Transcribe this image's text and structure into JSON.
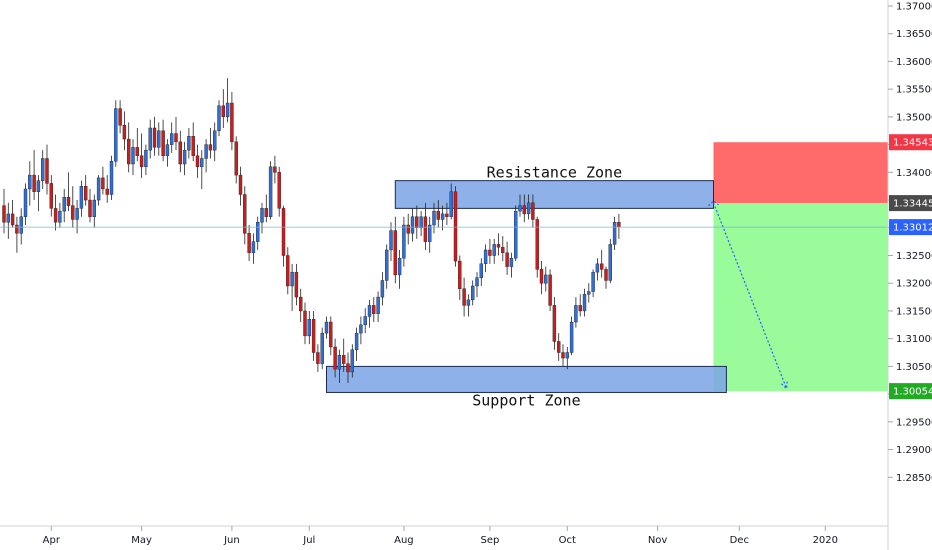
{
  "chart_data": {
    "type": "candlestick",
    "y_range": [
      1.28,
      1.37
    ],
    "y_ticks": [
      "1.37000",
      "1.36500",
      "1.36000",
      "1.35500",
      "1.35000",
      "1.34500",
      "1.34000",
      "1.33500",
      "1.33000",
      "1.32500",
      "1.32000",
      "1.31500",
      "1.31000",
      "1.30500",
      "1.30000",
      "1.29500",
      "1.29000",
      "1.28500"
    ],
    "x_labels": [
      {
        "label": "Apr",
        "index": 11
      },
      {
        "label": "May",
        "index": 32
      },
      {
        "label": "Jun",
        "index": 53
      },
      {
        "label": "Jul",
        "index": 71
      },
      {
        "label": "Aug",
        "index": 93
      },
      {
        "label": "Sep",
        "index": 113
      },
      {
        "label": "Oct",
        "index": 131
      },
      {
        "label": "Nov",
        "index": 152
      },
      {
        "label": "Dec",
        "index": 171
      },
      {
        "label": "2020",
        "index": 191
      }
    ],
    "price_tags": [
      {
        "value": 1.34543,
        "text": "1.34543",
        "color": "#f23645"
      },
      {
        "value": 1.33445,
        "text": "1.33445",
        "color": "#4a4a4a"
      },
      {
        "value": 1.33012,
        "text": "1.33012",
        "color": "#2962ff"
      },
      {
        "value": 1.30054,
        "text": "1.30054",
        "color": "#22ab22"
      }
    ],
    "zones": [
      {
        "name": "Resistance Zone",
        "top": 1.3385,
        "bottom": 1.3335,
        "start_index": 91,
        "end_index": 165
      },
      {
        "name": "Support Zone",
        "top": 1.305,
        "bottom": 1.3003,
        "start_index": 75,
        "end_index": 168
      }
    ],
    "position": {
      "entry": 1.33445,
      "stop": 1.34543,
      "target": 1.30054,
      "start_index": 165,
      "end_index": 196,
      "loss_color": "#ff6b6b",
      "profit_color": "#99fb99"
    },
    "projection": {
      "from_index": 165,
      "from_value": 1.3345,
      "to_index": 182,
      "to_value": 1.301
    },
    "current_price": 1.33012,
    "colors": {
      "up": "#2f6fd6",
      "down": "#c81e1e",
      "zone_fill": "#7aa3e6",
      "zone_border": "#1a2a55",
      "projection": "#2962ff",
      "current_line": "#7fb3d5"
    },
    "ohlc": [
      [
        1.334,
        1.337,
        1.329,
        1.331
      ],
      [
        1.331,
        1.3345,
        1.328,
        1.3325
      ],
      [
        1.3325,
        1.335,
        1.33,
        1.3305
      ],
      [
        1.3305,
        1.332,
        1.3255,
        1.329
      ],
      [
        1.329,
        1.3335,
        1.327,
        1.332
      ],
      [
        1.332,
        1.338,
        1.3305,
        1.337
      ],
      [
        1.337,
        1.342,
        1.334,
        1.3395
      ],
      [
        1.3395,
        1.344,
        1.335,
        1.3365
      ],
      [
        1.3365,
        1.3395,
        1.333,
        1.3385
      ],
      [
        1.3385,
        1.344,
        1.337,
        1.3425
      ],
      [
        1.3425,
        1.345,
        1.336,
        1.338
      ],
      [
        1.338,
        1.3395,
        1.332,
        1.3335
      ],
      [
        1.3335,
        1.336,
        1.3295,
        1.331
      ],
      [
        1.331,
        1.3345,
        1.33,
        1.333
      ],
      [
        1.333,
        1.337,
        1.331,
        1.3355
      ],
      [
        1.3355,
        1.34,
        1.333,
        1.334
      ],
      [
        1.334,
        1.3375,
        1.33,
        1.3315
      ],
      [
        1.3315,
        1.335,
        1.329,
        1.3335
      ],
      [
        1.3335,
        1.3385,
        1.332,
        1.3375
      ],
      [
        1.3375,
        1.3395,
        1.334,
        1.335
      ],
      [
        1.335,
        1.337,
        1.331,
        1.332
      ],
      [
        1.332,
        1.336,
        1.33,
        1.335
      ],
      [
        1.335,
        1.3395,
        1.334,
        1.339
      ],
      [
        1.339,
        1.341,
        1.336,
        1.337
      ],
      [
        1.337,
        1.3395,
        1.3345,
        1.336
      ],
      [
        1.336,
        1.343,
        1.335,
        1.342
      ],
      [
        1.342,
        1.353,
        1.341,
        1.3515
      ],
      [
        1.3515,
        1.353,
        1.347,
        1.3485
      ],
      [
        1.3485,
        1.351,
        1.344,
        1.346
      ],
      [
        1.346,
        1.349,
        1.34,
        1.3415
      ],
      [
        1.3415,
        1.346,
        1.3395,
        1.3445
      ],
      [
        1.3445,
        1.348,
        1.342,
        1.343
      ],
      [
        1.343,
        1.347,
        1.339,
        1.341
      ],
      [
        1.341,
        1.345,
        1.3395,
        1.344
      ],
      [
        1.344,
        1.3495,
        1.3425,
        1.348
      ],
      [
        1.348,
        1.35,
        1.343,
        1.3445
      ],
      [
        1.3445,
        1.349,
        1.343,
        1.3475
      ],
      [
        1.3475,
        1.3495,
        1.342,
        1.343
      ],
      [
        1.343,
        1.346,
        1.341,
        1.345
      ],
      [
        1.345,
        1.349,
        1.3435,
        1.347
      ],
      [
        1.347,
        1.35,
        1.344,
        1.3455
      ],
      [
        1.3455,
        1.3475,
        1.34,
        1.3415
      ],
      [
        1.3415,
        1.3455,
        1.3395,
        1.344
      ],
      [
        1.344,
        1.348,
        1.3425,
        1.3465
      ],
      [
        1.3465,
        1.349,
        1.342,
        1.343
      ],
      [
        1.343,
        1.345,
        1.339,
        1.341
      ],
      [
        1.341,
        1.344,
        1.337,
        1.3425
      ],
      [
        1.3425,
        1.346,
        1.34,
        1.345
      ],
      [
        1.345,
        1.348,
        1.3425,
        1.344
      ],
      [
        1.344,
        1.349,
        1.342,
        1.3475
      ],
      [
        1.3475,
        1.353,
        1.3465,
        1.352
      ],
      [
        1.352,
        1.355,
        1.348,
        1.35
      ],
      [
        1.35,
        1.357,
        1.349,
        1.3525
      ],
      [
        1.3525,
        1.3545,
        1.344,
        1.3455
      ],
      [
        1.3455,
        1.3465,
        1.338,
        1.3395
      ],
      [
        1.3395,
        1.341,
        1.334,
        1.336
      ],
      [
        1.336,
        1.3375,
        1.327,
        1.329
      ],
      [
        1.329,
        1.3305,
        1.324,
        1.3255
      ],
      [
        1.3255,
        1.329,
        1.3235,
        1.3275
      ],
      [
        1.3275,
        1.332,
        1.326,
        1.331
      ],
      [
        1.331,
        1.3345,
        1.329,
        1.3335
      ],
      [
        1.3335,
        1.336,
        1.331,
        1.332
      ],
      [
        1.332,
        1.342,
        1.3315,
        1.341
      ],
      [
        1.341,
        1.343,
        1.338,
        1.34
      ],
      [
        1.34,
        1.341,
        1.332,
        1.3335
      ],
      [
        1.3335,
        1.334,
        1.323,
        1.325
      ],
      [
        1.325,
        1.3265,
        1.318,
        1.3195
      ],
      [
        1.3195,
        1.3235,
        1.315,
        1.322
      ],
      [
        1.322,
        1.3235,
        1.316,
        1.3175
      ],
      [
        1.3175,
        1.319,
        1.313,
        1.315
      ],
      [
        1.315,
        1.3165,
        1.309,
        1.3105
      ],
      [
        1.3105,
        1.315,
        1.309,
        1.3135
      ],
      [
        1.3135,
        1.315,
        1.306,
        1.3075
      ],
      [
        1.3075,
        1.309,
        1.304,
        1.3055
      ],
      [
        1.3055,
        1.312,
        1.3045,
        1.311
      ],
      [
        1.311,
        1.314,
        1.31,
        1.313
      ],
      [
        1.313,
        1.314,
        1.307,
        1.3085
      ],
      [
        1.3085,
        1.31,
        1.303,
        1.3045
      ],
      [
        1.3045,
        1.308,
        1.302,
        1.307
      ],
      [
        1.307,
        1.31,
        1.304,
        1.3055
      ],
      [
        1.3055,
        1.3075,
        1.302,
        1.304
      ],
      [
        1.304,
        1.309,
        1.303,
        1.308
      ],
      [
        1.308,
        1.312,
        1.306,
        1.311
      ],
      [
        1.311,
        1.314,
        1.309,
        1.3125
      ],
      [
        1.3125,
        1.3155,
        1.311,
        1.314
      ],
      [
        1.314,
        1.317,
        1.312,
        1.316
      ],
      [
        1.316,
        1.3175,
        1.313,
        1.3145
      ],
      [
        1.3145,
        1.3185,
        1.313,
        1.3175
      ],
      [
        1.3175,
        1.322,
        1.316,
        1.3205
      ],
      [
        1.3205,
        1.327,
        1.319,
        1.326
      ],
      [
        1.326,
        1.331,
        1.324,
        1.3295
      ],
      [
        1.3295,
        1.332,
        1.32,
        1.3215
      ],
      [
        1.3215,
        1.326,
        1.319,
        1.3245
      ],
      [
        1.3245,
        1.332,
        1.323,
        1.3305
      ],
      [
        1.3305,
        1.3325,
        1.327,
        1.329
      ],
      [
        1.329,
        1.3335,
        1.3275,
        1.332
      ],
      [
        1.332,
        1.334,
        1.328,
        1.33
      ],
      [
        1.33,
        1.333,
        1.3285,
        1.332
      ],
      [
        1.332,
        1.3345,
        1.326,
        1.3275
      ],
      [
        1.3275,
        1.332,
        1.3255,
        1.3305
      ],
      [
        1.3305,
        1.3345,
        1.329,
        1.333
      ],
      [
        1.333,
        1.335,
        1.33,
        1.3315
      ],
      [
        1.3315,
        1.334,
        1.3295,
        1.3325
      ],
      [
        1.3325,
        1.3345,
        1.3305,
        1.332
      ],
      [
        1.332,
        1.338,
        1.3315,
        1.3365
      ],
      [
        1.3365,
        1.3375,
        1.323,
        1.324
      ],
      [
        1.324,
        1.325,
        1.317,
        1.319
      ],
      [
        1.319,
        1.321,
        1.314,
        1.316
      ],
      [
        1.316,
        1.318,
        1.314,
        1.317
      ],
      [
        1.317,
        1.3205,
        1.316,
        1.3195
      ],
      [
        1.3195,
        1.322,
        1.3175,
        1.321
      ],
      [
        1.321,
        1.3245,
        1.3195,
        1.3235
      ],
      [
        1.3235,
        1.327,
        1.322,
        1.326
      ],
      [
        1.326,
        1.328,
        1.3235,
        1.325
      ],
      [
        1.325,
        1.328,
        1.3235,
        1.327
      ],
      [
        1.327,
        1.329,
        1.325,
        1.3265
      ],
      [
        1.3265,
        1.3285,
        1.324,
        1.3255
      ],
      [
        1.3255,
        1.3275,
        1.3215,
        1.323
      ],
      [
        1.323,
        1.3255,
        1.321,
        1.3245
      ],
      [
        1.3245,
        1.334,
        1.324,
        1.333
      ],
      [
        1.333,
        1.336,
        1.332,
        1.334
      ],
      [
        1.334,
        1.336,
        1.331,
        1.3325
      ],
      [
        1.3325,
        1.336,
        1.3315,
        1.3345
      ],
      [
        1.3345,
        1.336,
        1.33,
        1.3315
      ],
      [
        1.3315,
        1.332,
        1.321,
        1.3225
      ],
      [
        1.3225,
        1.324,
        1.318,
        1.32
      ],
      [
        1.32,
        1.323,
        1.3185,
        1.3215
      ],
      [
        1.3215,
        1.3225,
        1.315,
        1.316
      ],
      [
        1.316,
        1.3175,
        1.308,
        1.3095
      ],
      [
        1.3095,
        1.311,
        1.306,
        1.3075
      ],
      [
        1.3075,
        1.309,
        1.305,
        1.3065
      ],
      [
        1.3065,
        1.3085,
        1.3045,
        1.3075
      ],
      [
        1.3075,
        1.314,
        1.307,
        1.313
      ],
      [
        1.313,
        1.3175,
        1.312,
        1.316
      ],
      [
        1.316,
        1.318,
        1.314,
        1.315
      ],
      [
        1.315,
        1.319,
        1.314,
        1.318
      ],
      [
        1.318,
        1.32,
        1.3165,
        1.3185
      ],
      [
        1.3185,
        1.3225,
        1.3175,
        1.322
      ],
      [
        1.322,
        1.3245,
        1.3205,
        1.3235
      ],
      [
        1.3235,
        1.326,
        1.321,
        1.3225
      ],
      [
        1.3225,
        1.323,
        1.319,
        1.3205
      ],
      [
        1.3205,
        1.328,
        1.32,
        1.327
      ],
      [
        1.327,
        1.332,
        1.326,
        1.331
      ],
      [
        1.331,
        1.3325,
        1.328,
        1.3301
      ]
    ]
  }
}
